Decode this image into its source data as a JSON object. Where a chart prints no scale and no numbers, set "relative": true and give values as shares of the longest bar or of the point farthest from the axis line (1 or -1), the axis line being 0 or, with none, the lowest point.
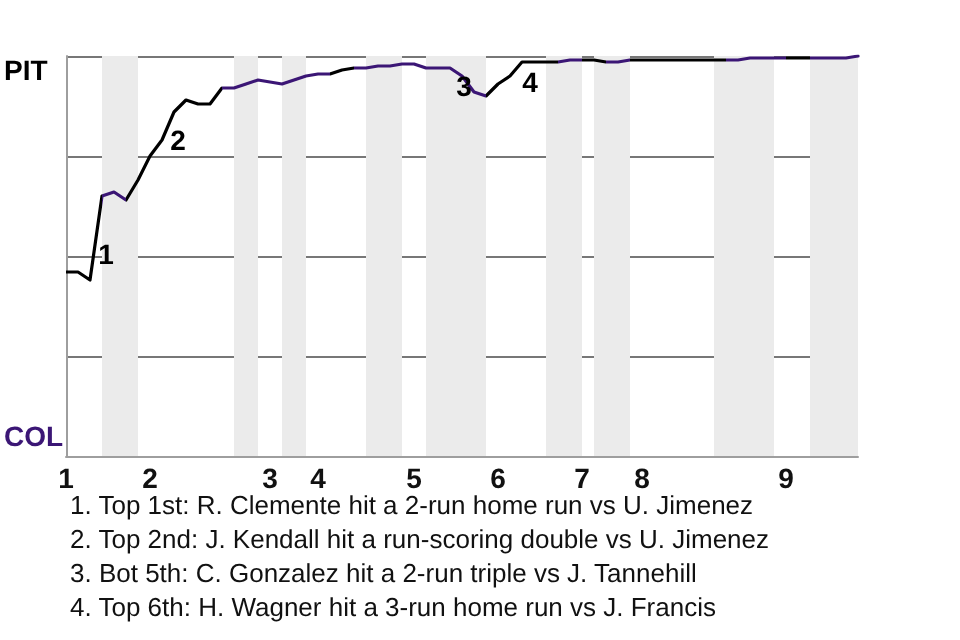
{
  "chart_data": {
    "type": "line",
    "relative": true,
    "categories": [
      "1",
      null,
      null,
      null,
      null,
      null,
      null,
      "2",
      null,
      null,
      null,
      null,
      null,
      null,
      null,
      null,
      null,
      "3",
      null,
      null,
      null,
      "4",
      null,
      null,
      null,
      null,
      null,
      null,
      null,
      "5",
      null,
      null,
      null,
      null,
      null,
      null,
      "6",
      null,
      null,
      null,
      null,
      null,
      null,
      "7",
      null,
      null,
      null,
      null,
      "8",
      null,
      null,
      null,
      null,
      null,
      null,
      null,
      null,
      null,
      null,
      null,
      "9",
      null,
      null,
      null,
      null,
      null,
      null
    ],
    "values": [
      0.46,
      0.46,
      0.44,
      0.65,
      0.66,
      0.64,
      0.69,
      0.75,
      0.79,
      0.86,
      0.89,
      0.88,
      0.88,
      0.92,
      0.92,
      0.93,
      0.94,
      0.935,
      0.93,
      0.94,
      0.95,
      0.955,
      0.955,
      0.965,
      0.97,
      0.97,
      0.975,
      0.975,
      0.98,
      0.98,
      0.97,
      0.97,
      0.97,
      0.95,
      0.91,
      0.9,
      0.93,
      0.95,
      0.985,
      0.985,
      0.985,
      0.985,
      0.99,
      0.99,
      0.99,
      0.985,
      0.985,
      0.99,
      0.99,
      0.99,
      0.99,
      0.99,
      0.99,
      0.99,
      0.99,
      0.99,
      0.99,
      0.995,
      0.995,
      0.995,
      0.995,
      0.995,
      0.995,
      0.995,
      0.995,
      0.995,
      1
    ],
    "colors": [
      "#000000",
      "#000000",
      "#000000",
      "#3b1675",
      "#3b1675",
      "#000000",
      "#000000",
      "#000000",
      "#000000",
      "#000000",
      "#000000",
      "#000000",
      "#000000",
      "#3b1675",
      "#3b1675",
      "#3b1675",
      "#3b1675",
      "#3b1675",
      "#3b1675",
      "#3b1675",
      "#3b1675",
      "#3b1675",
      "#000000",
      "#000000",
      "#3b1675",
      "#3b1675",
      "#3b1675",
      "#3b1675",
      "#3b1675",
      "#3b1675",
      "#3b1675",
      "#3b1675",
      "#3b1675",
      "#3b1675",
      "#3b1675",
      "#000000",
      "#000000",
      "#000000",
      "#000000",
      "#000000",
      "#000000",
      "#3b1675",
      "#3b1675",
      "#000000",
      "#000000",
      "#3b1675",
      "#3b1675",
      "#000000",
      "#000000",
      "#000000",
      "#000000",
      "#000000",
      "#000000",
      "#000000",
      "#000000",
      "#3b1675",
      "#3b1675",
      "#3b1675",
      "#3b1675",
      "#3b1675",
      "#000000",
      "#000000",
      "#3b1675",
      "#3b1675",
      "#3b1675",
      "#3b1675",
      "#3b1675"
    ],
    "grid": "y",
    "annotations": [
      "PIT",
      "COL",
      "1",
      "2",
      "3",
      "4",
      "1. Top 1st: R. Clemente hit a 2-run home run vs U. Jimenez",
      "2. Top 2nd: J. Kendall hit a run-scoring double vs U. Jimenez",
      "3. Bot 5th: C. Gonzalez hit a 2-run triple vs J. Tannehill",
      "4. Top 6th: H. Wagner hit a 3-run home run vs J. Francis"
    ]
  }
}
